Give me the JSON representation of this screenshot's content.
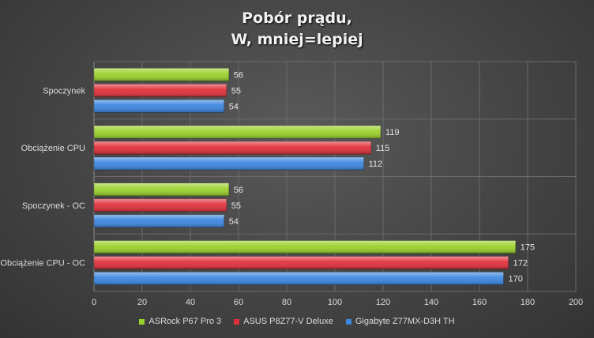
{
  "chart_data": {
    "type": "bar",
    "orientation": "horizontal",
    "title_lines": [
      "Pobór prądu,",
      "W, mniej=lepiej"
    ],
    "categories": [
      "Spoczynek",
      "Obciążenie CPU",
      "Spoczynek - OC",
      "Obciążenie CPU - OC"
    ],
    "series": [
      {
        "name": "ASRock P67 Pro 3",
        "color": "#9bd12c",
        "values": [
          56,
          119,
          56,
          175
        ]
      },
      {
        "name": "ASUS P8Z77-V Deluxe",
        "color": "#e0303a",
        "values": [
          55,
          115,
          55,
          172
        ]
      },
      {
        "name": "Gigabyte Z77MX-D3H TH",
        "color": "#3c86e0",
        "values": [
          54,
          112,
          54,
          170
        ]
      }
    ],
    "xlim": [
      0,
      200
    ],
    "xticks": [
      "0",
      "20",
      "40",
      "60",
      "80",
      "100",
      "120",
      "140",
      "160",
      "180",
      "200"
    ],
    "grid": true,
    "legend_position": "bottom"
  }
}
